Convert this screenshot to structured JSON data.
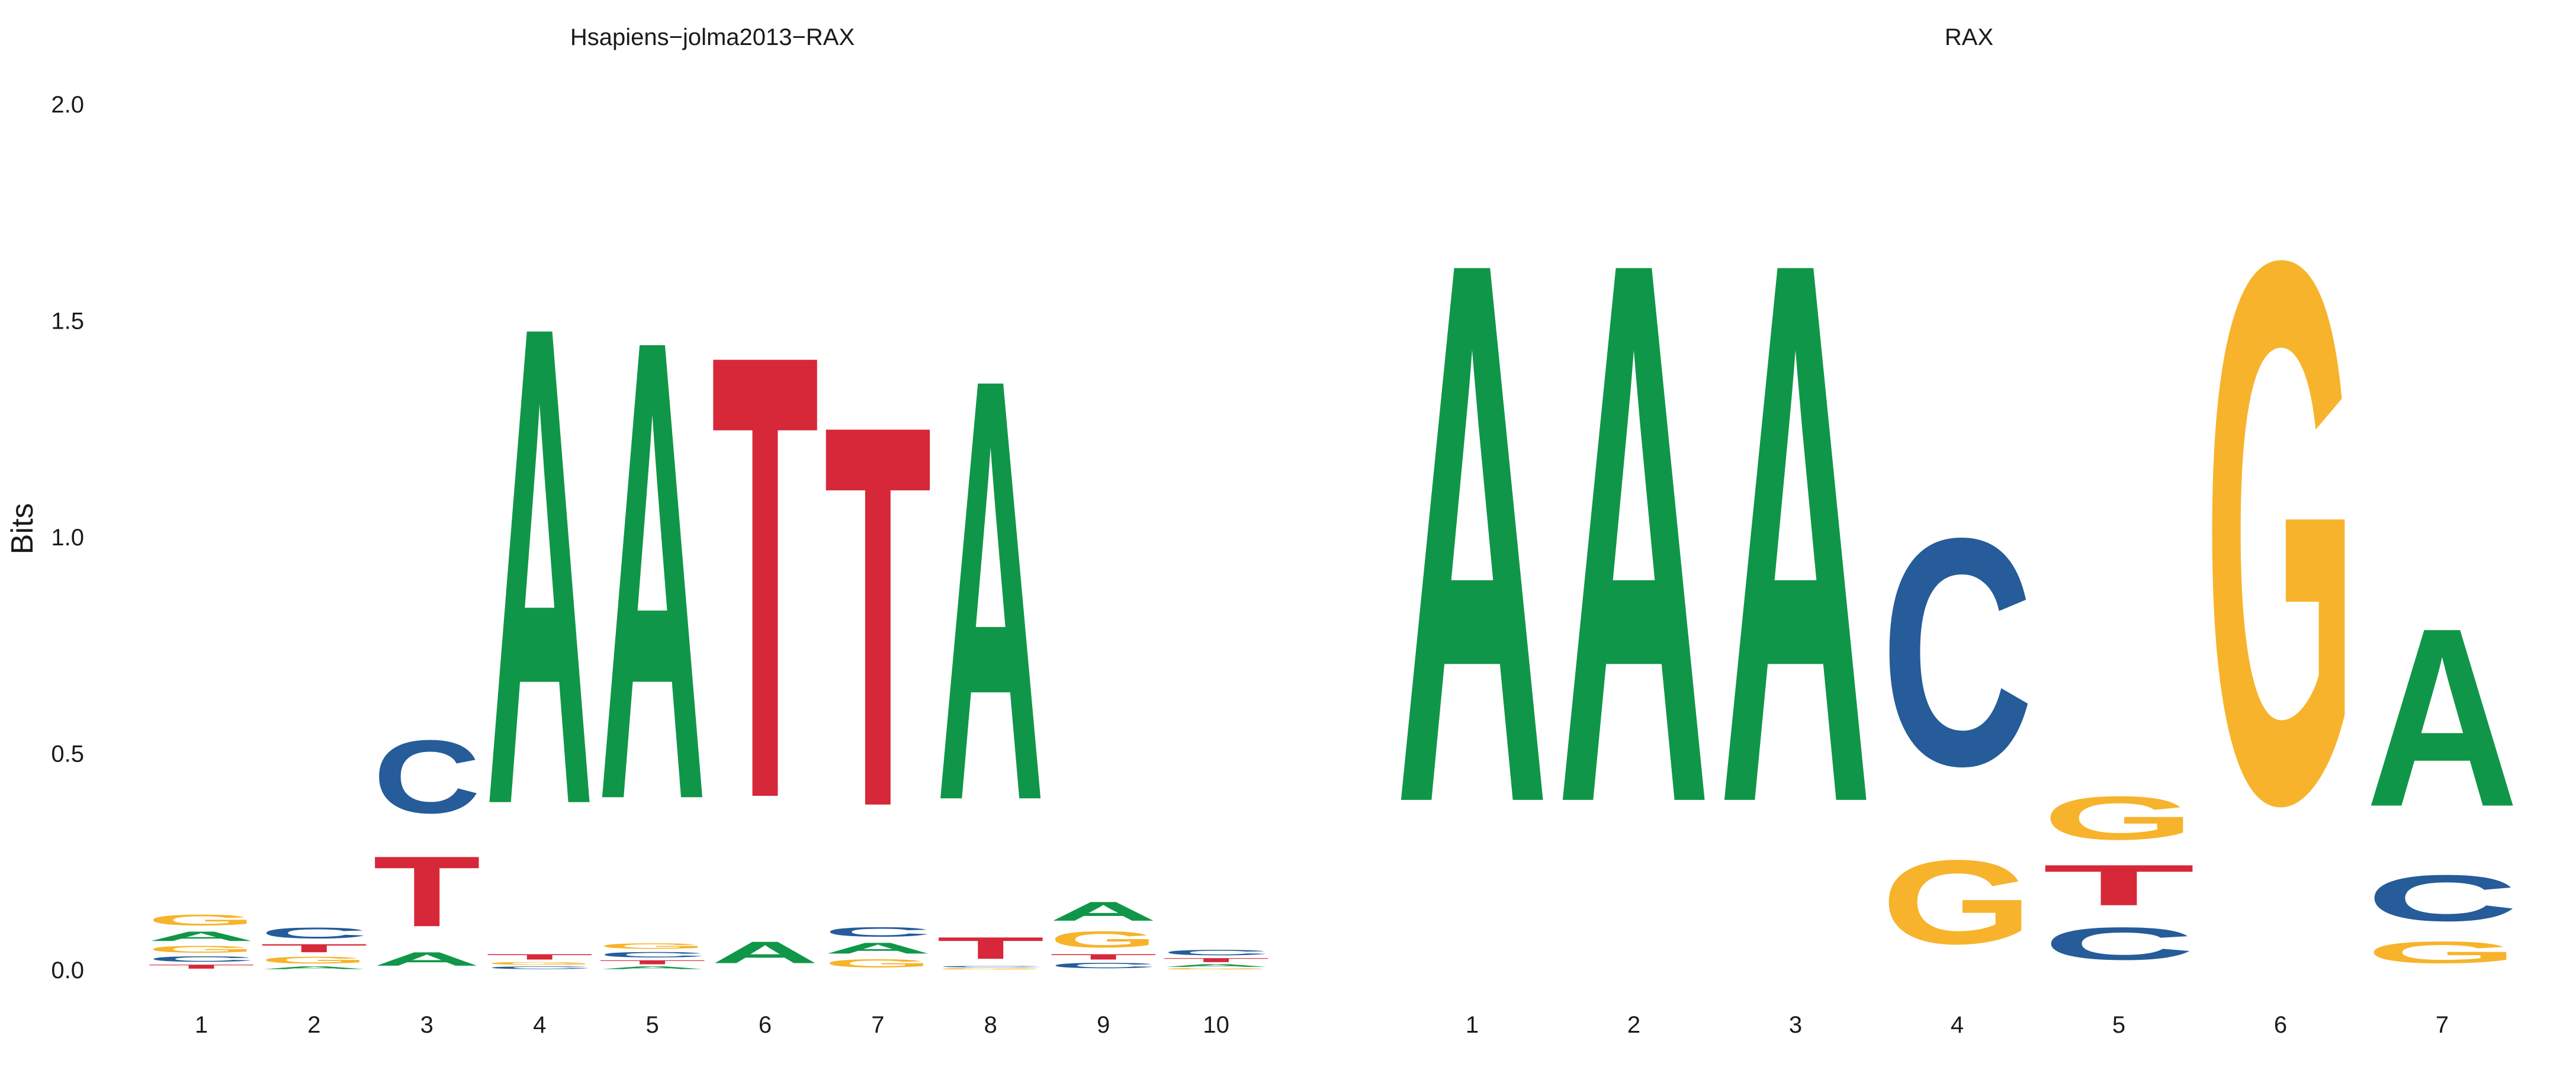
{
  "colors": {
    "A": "#109648",
    "C": "#255C99",
    "G": "#F7B32B",
    "T": "#D62839"
  },
  "ylabel": "Bits",
  "yticks": [
    "0.0",
    "0.5",
    "1.0",
    "1.5",
    "2.0"
  ],
  "chart_data": [
    {
      "type": "sequence_logo",
      "title": "Hsapiens−jolma2013−RAX",
      "ylabel": "Bits",
      "ylim": [
        0,
        2
      ],
      "positions": [
        {
          "label": "1",
          "stack": [
            [
              "T",
              0.015
            ],
            [
              "C",
              0.02
            ],
            [
              "G",
              0.025
            ],
            [
              "A",
              0.035
            ],
            [
              "G",
              0.04
            ]
          ]
        },
        {
          "label": "2",
          "stack": [
            [
              "A",
              0.01
            ],
            [
              "G",
              0.025
            ],
            [
              "T",
              0.03
            ],
            [
              "C",
              0.04
            ]
          ]
        },
        {
          "label": "3",
          "stack": [
            [
              "A",
              0.05
            ],
            [
              "T",
              0.26
            ],
            [
              "C",
              0.27
            ]
          ]
        },
        {
          "label": "4",
          "stack": [
            [
              "C",
              0.01
            ],
            [
              "G",
              0.01
            ],
            [
              "T",
              0.02
            ],
            [
              "A",
              1.77
            ]
          ]
        },
        {
          "label": "5",
          "stack": [
            [
              "A",
              0.01
            ],
            [
              "T",
              0.015
            ],
            [
              "C",
              0.02
            ],
            [
              "G",
              0.02
            ],
            [
              "A",
              1.7
            ]
          ]
        },
        {
          "label": "6",
          "stack": [
            [
              "A",
              0.08
            ],
            [
              "T",
              1.64
            ]
          ]
        },
        {
          "label": "7",
          "stack": [
            [
              "G",
              0.03
            ],
            [
              "A",
              0.04
            ],
            [
              "C",
              0.035
            ],
            [
              "T",
              1.41
            ]
          ]
        },
        {
          "label": "8",
          "stack": [
            [
              "G",
              0.005
            ],
            [
              "C",
              0.005
            ],
            [
              "T",
              0.08
            ],
            [
              "A",
              1.56
            ]
          ]
        },
        {
          "label": "9",
          "stack": [
            [
              "C",
              0.02
            ],
            [
              "T",
              0.02
            ],
            [
              "G",
              0.06
            ],
            [
              "A",
              0.07
            ]
          ]
        },
        {
          "label": "10",
          "stack": [
            [
              "G",
              0.005
            ],
            [
              "A",
              0.01
            ],
            [
              "T",
              0.015
            ],
            [
              "C",
              0.02
            ]
          ]
        }
      ]
    },
    {
      "type": "sequence_logo",
      "title": "RAX",
      "ylim": [
        0,
        2
      ],
      "positions": [
        {
          "label": "1",
          "stack": [
            [
              "A",
              2.0
            ]
          ]
        },
        {
          "label": "2",
          "stack": [
            [
              "A",
              2.0
            ]
          ]
        },
        {
          "label": "3",
          "stack": [
            [
              "A",
              2.0
            ]
          ]
        },
        {
          "label": "4",
          "stack": [
            [
              "G",
              0.31
            ],
            [
              "C",
              0.84
            ]
          ]
        },
        {
          "label": "5",
          "stack": [
            [
              "C",
              0.12
            ],
            [
              "T",
              0.15
            ],
            [
              "G",
              0.16
            ]
          ]
        },
        {
          "label": "6",
          "stack": [
            [
              "G",
              2.0
            ]
          ]
        },
        {
          "label": "7",
          "stack": [
            [
              "G",
              0.08
            ],
            [
              "C",
              0.17
            ],
            [
              "A",
              0.66
            ]
          ]
        }
      ]
    }
  ]
}
